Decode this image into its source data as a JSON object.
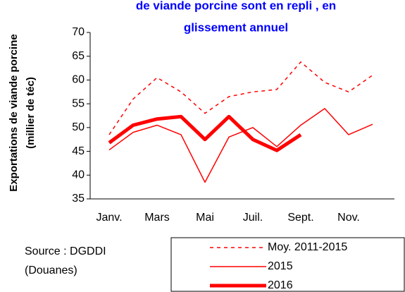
{
  "chart_data": {
    "type": "line",
    "title": [
      "de viande porcine sont en repli , en",
      "glissement annuel"
    ],
    "y_label": [
      "Exportations de viande porcine",
      "(millier de téc)"
    ],
    "source": [
      "Source : DGDDI",
      "(Douanes)"
    ],
    "categories": [
      "Janv.",
      null,
      "Mars",
      null,
      "Mai",
      null,
      "Juil.",
      null,
      "Sept.",
      null,
      "Nov.",
      null
    ],
    "series": [
      {
        "name": "Moy. 2011-2015",
        "color": "#ff0000",
        "style": "dashed",
        "width": 1.5,
        "values": [
          48.5,
          56,
          60.5,
          57.5,
          53,
          56.5,
          57.5,
          58,
          63.8,
          59.5,
          57.5,
          61
        ]
      },
      {
        "name": "2015",
        "color": "#ff0000",
        "style": "solid",
        "width": 1.5,
        "values": [
          45.3,
          49,
          50.5,
          48.5,
          38.5,
          48,
          50,
          46,
          50.5,
          54,
          48.5,
          50.7
        ]
      },
      {
        "name": "2016",
        "color": "#ff0000",
        "style": "solid",
        "width": 5,
        "values": [
          46.8,
          50.5,
          51.8,
          52.3,
          47.5,
          52.3,
          47.5,
          45.2,
          48.5,
          null,
          null,
          null
        ]
      }
    ],
    "ylim": [
      35,
      70
    ],
    "yticks": [
      35,
      40,
      45,
      50,
      55,
      60,
      65,
      70
    ],
    "grid": false
  }
}
